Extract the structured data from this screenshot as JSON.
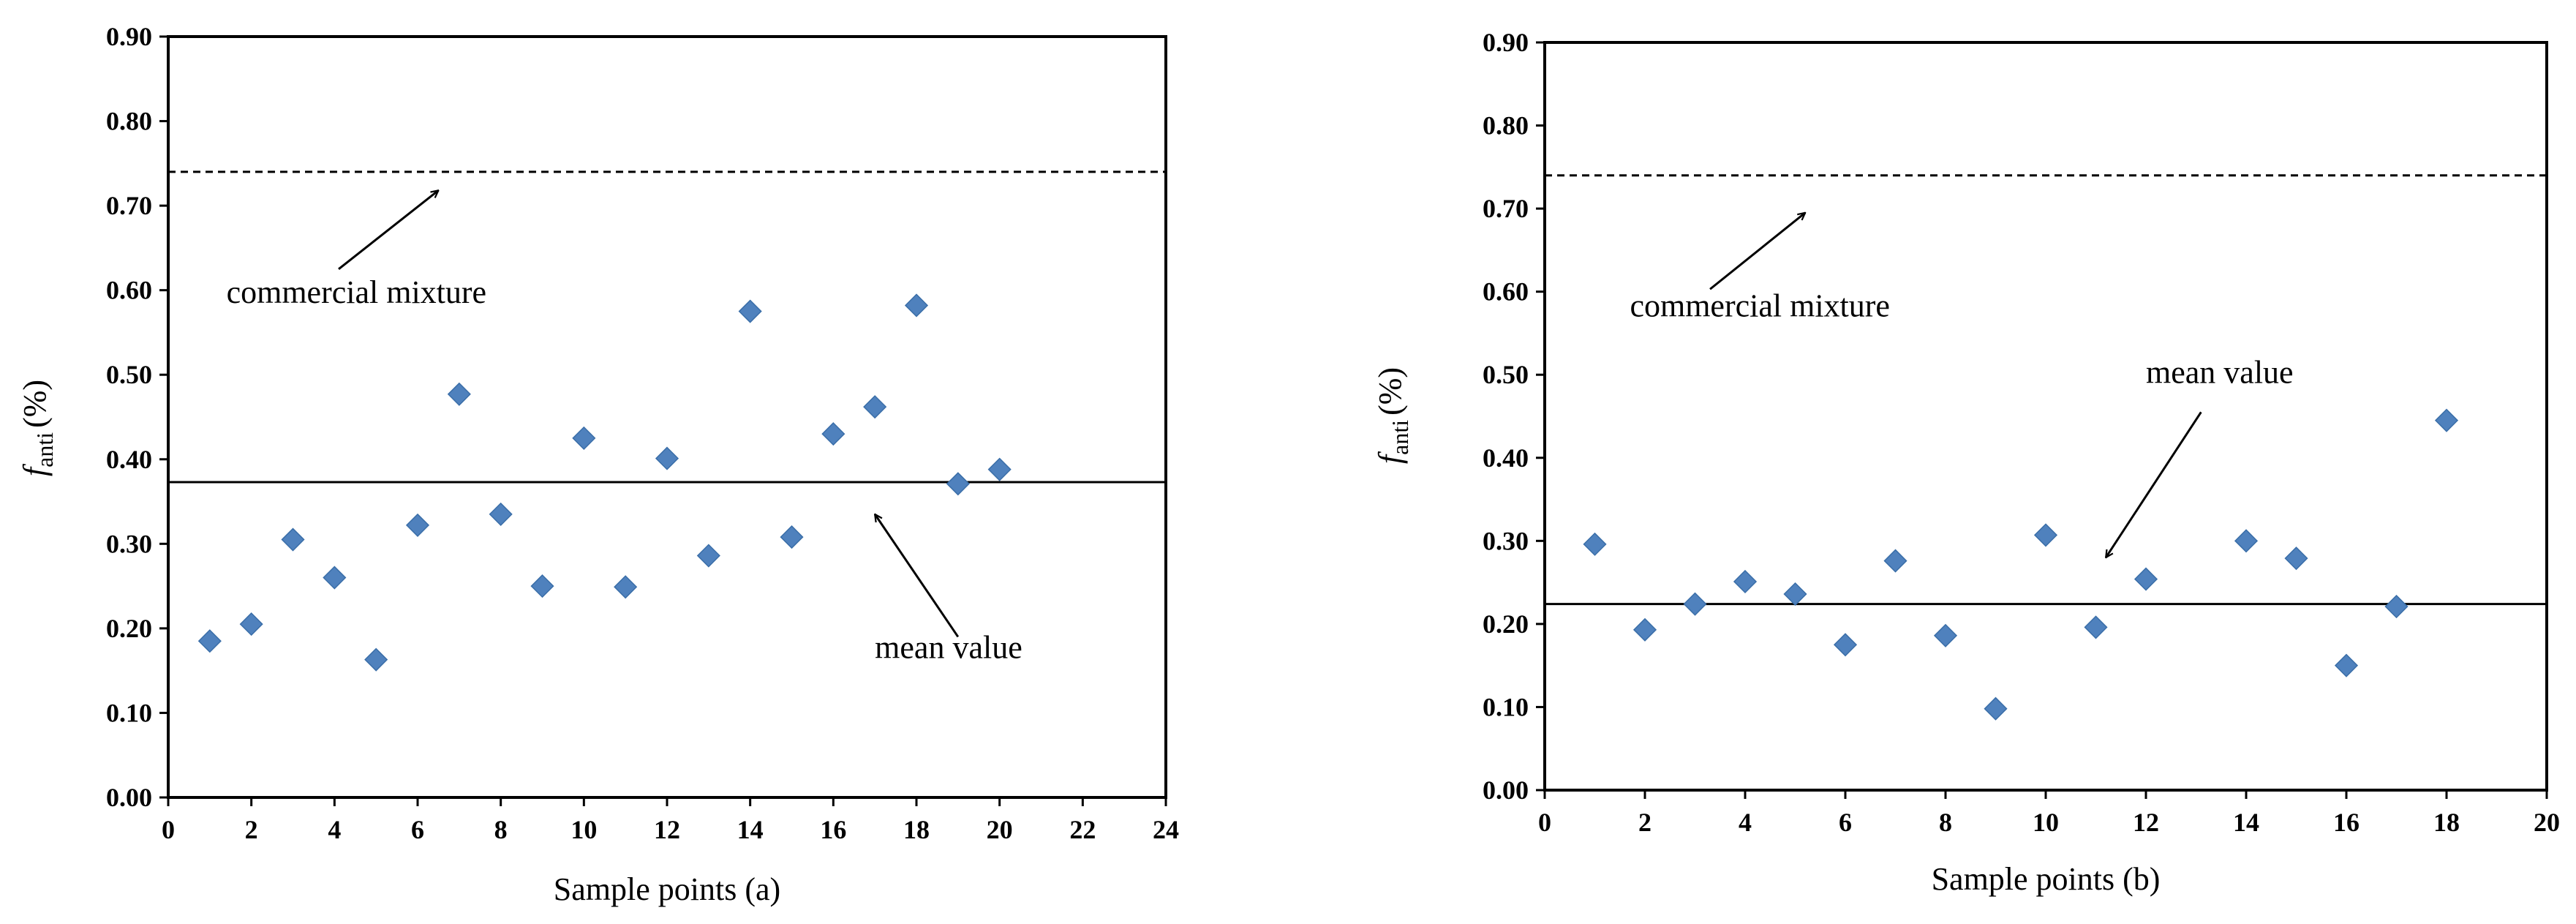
{
  "chart_data": [
    {
      "type": "scatter",
      "xlabel": "Sample points (a)",
      "ylabel": {
        "main": "f",
        "sub": "anti",
        "unit": "(%)"
      },
      "xlim": [
        0,
        24
      ],
      "ylim": [
        0,
        0.9
      ],
      "x_ticks": [
        "0",
        "2",
        "4",
        "6",
        "8",
        "10",
        "12",
        "14",
        "16",
        "18",
        "20",
        "22",
        "24"
      ],
      "y_ticks": [
        "0.00",
        "0.10",
        "0.20",
        "0.30",
        "0.40",
        "0.50",
        "0.60",
        "0.70",
        "0.80",
        "0.90"
      ],
      "grid": false,
      "marker_color": "#4F81BD",
      "series": [
        {
          "name": "samples",
          "x": [
            1,
            2,
            3,
            4,
            5,
            6,
            7,
            8,
            9,
            10,
            11,
            12,
            13,
            14,
            15,
            16,
            17,
            18,
            19,
            20
          ],
          "y": [
            0.185,
            0.205,
            0.305,
            0.26,
            0.163,
            0.322,
            0.477,
            0.335,
            0.25,
            0.425,
            0.249,
            0.401,
            0.286,
            0.575,
            0.308,
            0.43,
            0.462,
            0.582,
            0.371,
            0.388
          ]
        }
      ],
      "reference_lines": [
        {
          "name": "commercial mixture",
          "y": 0.74,
          "style": "dashed"
        },
        {
          "name": "mean value",
          "y": 0.373,
          "style": "solid"
        }
      ],
      "annotations": [
        {
          "text": "commercial mixture",
          "label_at": [
            1.4,
            0.585
          ],
          "arrow_from": [
            4.1,
            0.625
          ],
          "arrow_to": [
            6.5,
            0.718
          ]
        },
        {
          "text": "mean value",
          "label_at": [
            17.0,
            0.165
          ],
          "arrow_from": [
            19.0,
            0.19
          ],
          "arrow_to": [
            17.0,
            0.335
          ]
        }
      ]
    },
    {
      "type": "scatter",
      "xlabel": "Sample points (b)",
      "ylabel": {
        "main": "f",
        "sub": "anti",
        "unit": "(%)"
      },
      "xlim": [
        0,
        20
      ],
      "ylim": [
        0,
        0.9
      ],
      "x_ticks": [
        "0",
        "2",
        "4",
        "6",
        "8",
        "10",
        "12",
        "14",
        "16",
        "18",
        "20"
      ],
      "y_ticks": [
        "0.00",
        "0.10",
        "0.20",
        "0.30",
        "0.40",
        "0.50",
        "0.60",
        "0.70",
        "0.80",
        "0.90"
      ],
      "grid": false,
      "marker_color": "#4F81BD",
      "series": [
        {
          "name": "samples",
          "x": [
            1,
            2,
            3,
            4,
            5,
            6,
            7,
            8,
            9,
            10,
            11,
            12,
            14,
            15,
            16,
            17,
            18
          ],
          "y": [
            0.296,
            0.193,
            0.224,
            0.251,
            0.236,
            0.175,
            0.276,
            0.186,
            0.098,
            0.307,
            0.196,
            0.254,
            0.3,
            0.279,
            0.15,
            0.221,
            0.445
          ]
        }
      ],
      "reference_lines": [
        {
          "name": "commercial mixture",
          "y": 0.74,
          "style": "dashed"
        },
        {
          "name": "mean value",
          "y": 0.224,
          "style": "solid"
        }
      ],
      "annotations": [
        {
          "text": "commercial mixture",
          "label_at": [
            1.7,
            0.57
          ],
          "arrow_from": [
            3.3,
            0.603
          ],
          "arrow_to": [
            5.2,
            0.695
          ]
        },
        {
          "text": "mean value",
          "label_at": [
            12.0,
            0.49
          ],
          "arrow_from": [
            13.1,
            0.455
          ],
          "arrow_to": [
            11.2,
            0.28
          ]
        }
      ]
    }
  ]
}
